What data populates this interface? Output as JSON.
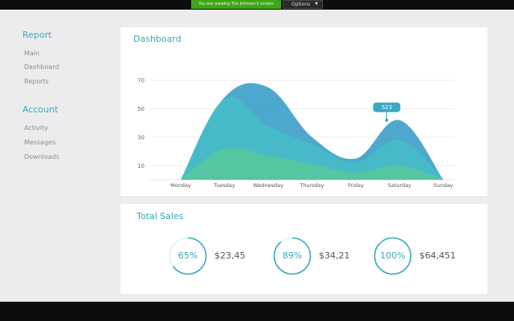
{
  "topbar": {
    "share_banner": "You are viewing Tim Johnson's screen",
    "options_label": "Options",
    "options_icon": "chevron-down-icon"
  },
  "sidebar": {
    "sections": [
      {
        "title": "Report",
        "items": [
          "Main",
          "Dashboard",
          "Reports"
        ]
      },
      {
        "title": "Account",
        "items": [
          "Activity",
          "Messages",
          "Downloads"
        ]
      }
    ]
  },
  "dashboard": {
    "title": "Dashboard",
    "callout": "523"
  },
  "chart_data": {
    "type": "area",
    "categories": [
      "Monday",
      "Tuesday",
      "Wednesday",
      "Thursday",
      "Friday",
      "Saturday",
      "Sunday"
    ],
    "yticks": [
      10,
      30,
      50,
      70
    ],
    "ylim": [
      0,
      78
    ],
    "grid": true,
    "annotation": {
      "label": "523",
      "category": "Saturday"
    },
    "series": [
      {
        "values": [
          0,
          58,
          65,
          30,
          15,
          42,
          0
        ],
        "color": "#3b9fc8"
      },
      {
        "values": [
          0,
          57,
          38,
          25,
          12,
          28,
          0
        ],
        "color": "#46bdc6"
      },
      {
        "values": [
          0,
          22,
          17,
          11,
          5,
          10,
          0
        ],
        "color": "#58c79c"
      }
    ]
  },
  "sales": {
    "title": "Total Sales",
    "accent": "#3aa9ba",
    "items": [
      {
        "percent_label": "65%",
        "percent": 65,
        "amount": "$23,45"
      },
      {
        "percent_label": "89%",
        "percent": 89,
        "amount": "$34,21"
      },
      {
        "percent_label": "100%",
        "percent": 100,
        "amount": "$64,451"
      }
    ]
  }
}
